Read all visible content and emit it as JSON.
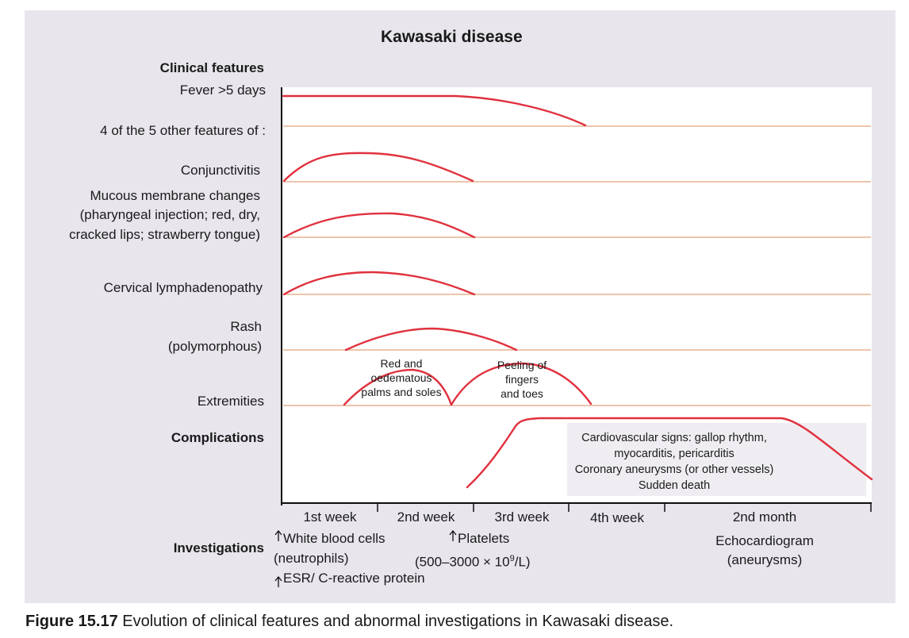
{
  "title": "Kawasaki disease",
  "headings": {
    "clinical_features": "Clinical features",
    "complications": "Complications",
    "investigations": "Investigations"
  },
  "rows": {
    "fever": "Fever >5 days",
    "other_features": "4 of the 5 other features of :",
    "conjunctivitis": "Conjunctivitis",
    "mucous_1": "Mucous membrane changes",
    "mucous_2": "(pharyngeal injection; red, dry,",
    "mucous_3": "cracked lips; strawberry tongue)",
    "cervical": "Cervical lymphadenopathy",
    "rash_1": "Rash",
    "rash_2": "(polymorphous)",
    "extremities": "Extremities"
  },
  "annotations": {
    "red_1": "Red and",
    "red_2": "oedematous",
    "red_3": "palms and soles",
    "peel_1": "Peeling of",
    "peel_2": "fingers",
    "peel_3": "and toes"
  },
  "complications_box": {
    "l1": "Cardiovascular signs: gallop rhythm,",
    "l2": "myocarditis, pericarditis",
    "l3": "Coronary aneurysms (or other vessels)",
    "l4": "Sudden death"
  },
  "axis": {
    "w1": "1st week",
    "w2": "2nd week",
    "w3": "3rd week",
    "w4": "4th week",
    "m2": "2nd month"
  },
  "investigations": {
    "wbc_1": "White blood cells",
    "wbc_2": "(neutrophils)",
    "esr": "ESR/ C-reactive protein",
    "plt_1": "Platelets",
    "plt_2a": "(500–3000 × 10",
    "plt_2sup": "9",
    "plt_2b": "/L)",
    "echo_1": "Echocardiogram",
    "echo_2": "(aneurysms)"
  },
  "caption": {
    "label": "Figure 15.17",
    "text": " Evolution of clinical features and abnormal investigations in Kawasaki disease."
  },
  "colors": {
    "curve": "#e0313e",
    "row_line": "#e2a27a",
    "panel": "#e8e5ec"
  }
}
